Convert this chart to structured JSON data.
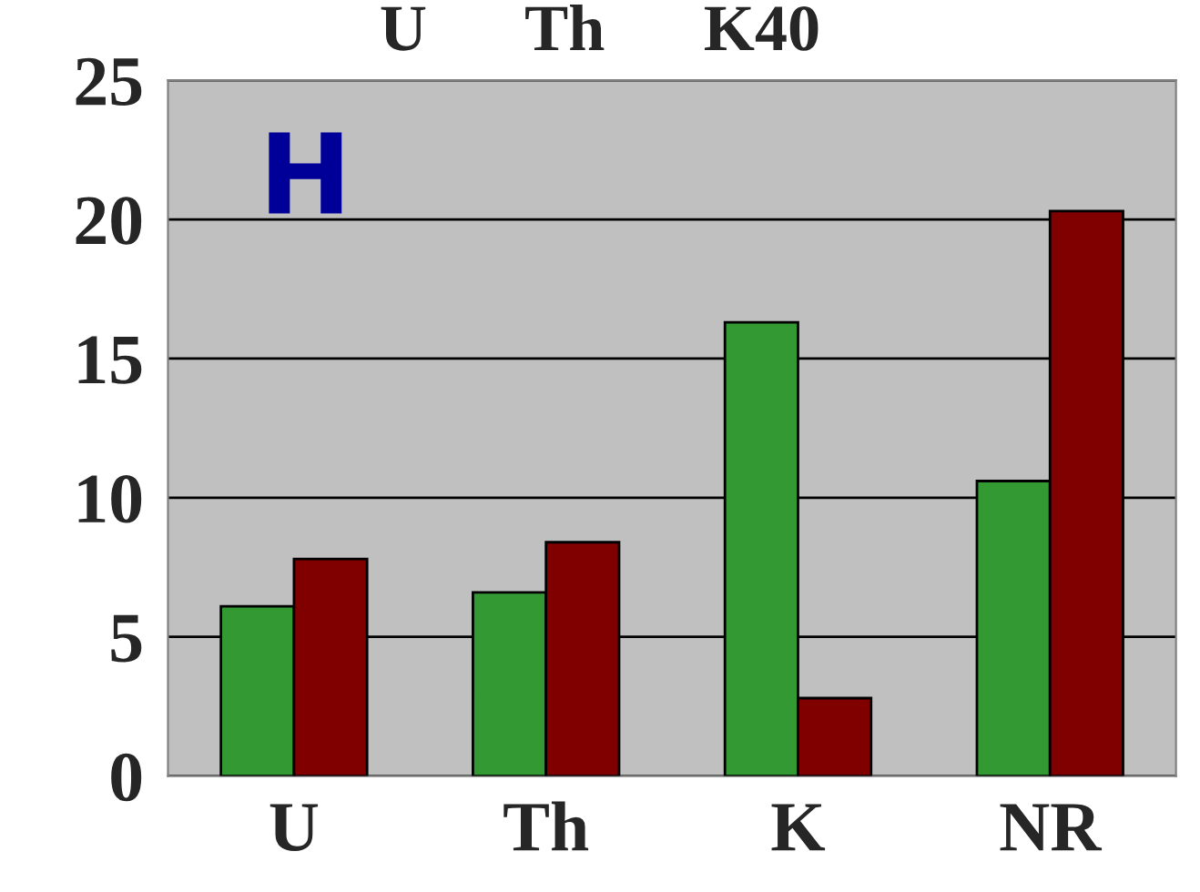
{
  "chart_data": {
    "type": "bar",
    "title": "U      Th      K40",
    "categories": [
      "U",
      "Th",
      "K",
      "NR"
    ],
    "series": [
      {
        "color": "#339933",
        "values": [
          6.1,
          6.6,
          16.3,
          10.6
        ]
      },
      {
        "color": "#800000",
        "values": [
          7.8,
          8.4,
          2.8,
          20.3
        ]
      }
    ],
    "ylim": [
      0,
      25
    ],
    "yticks": [
      0,
      5,
      10,
      15,
      20,
      25
    ],
    "grid": "y",
    "annotations": [
      "H"
    ]
  }
}
